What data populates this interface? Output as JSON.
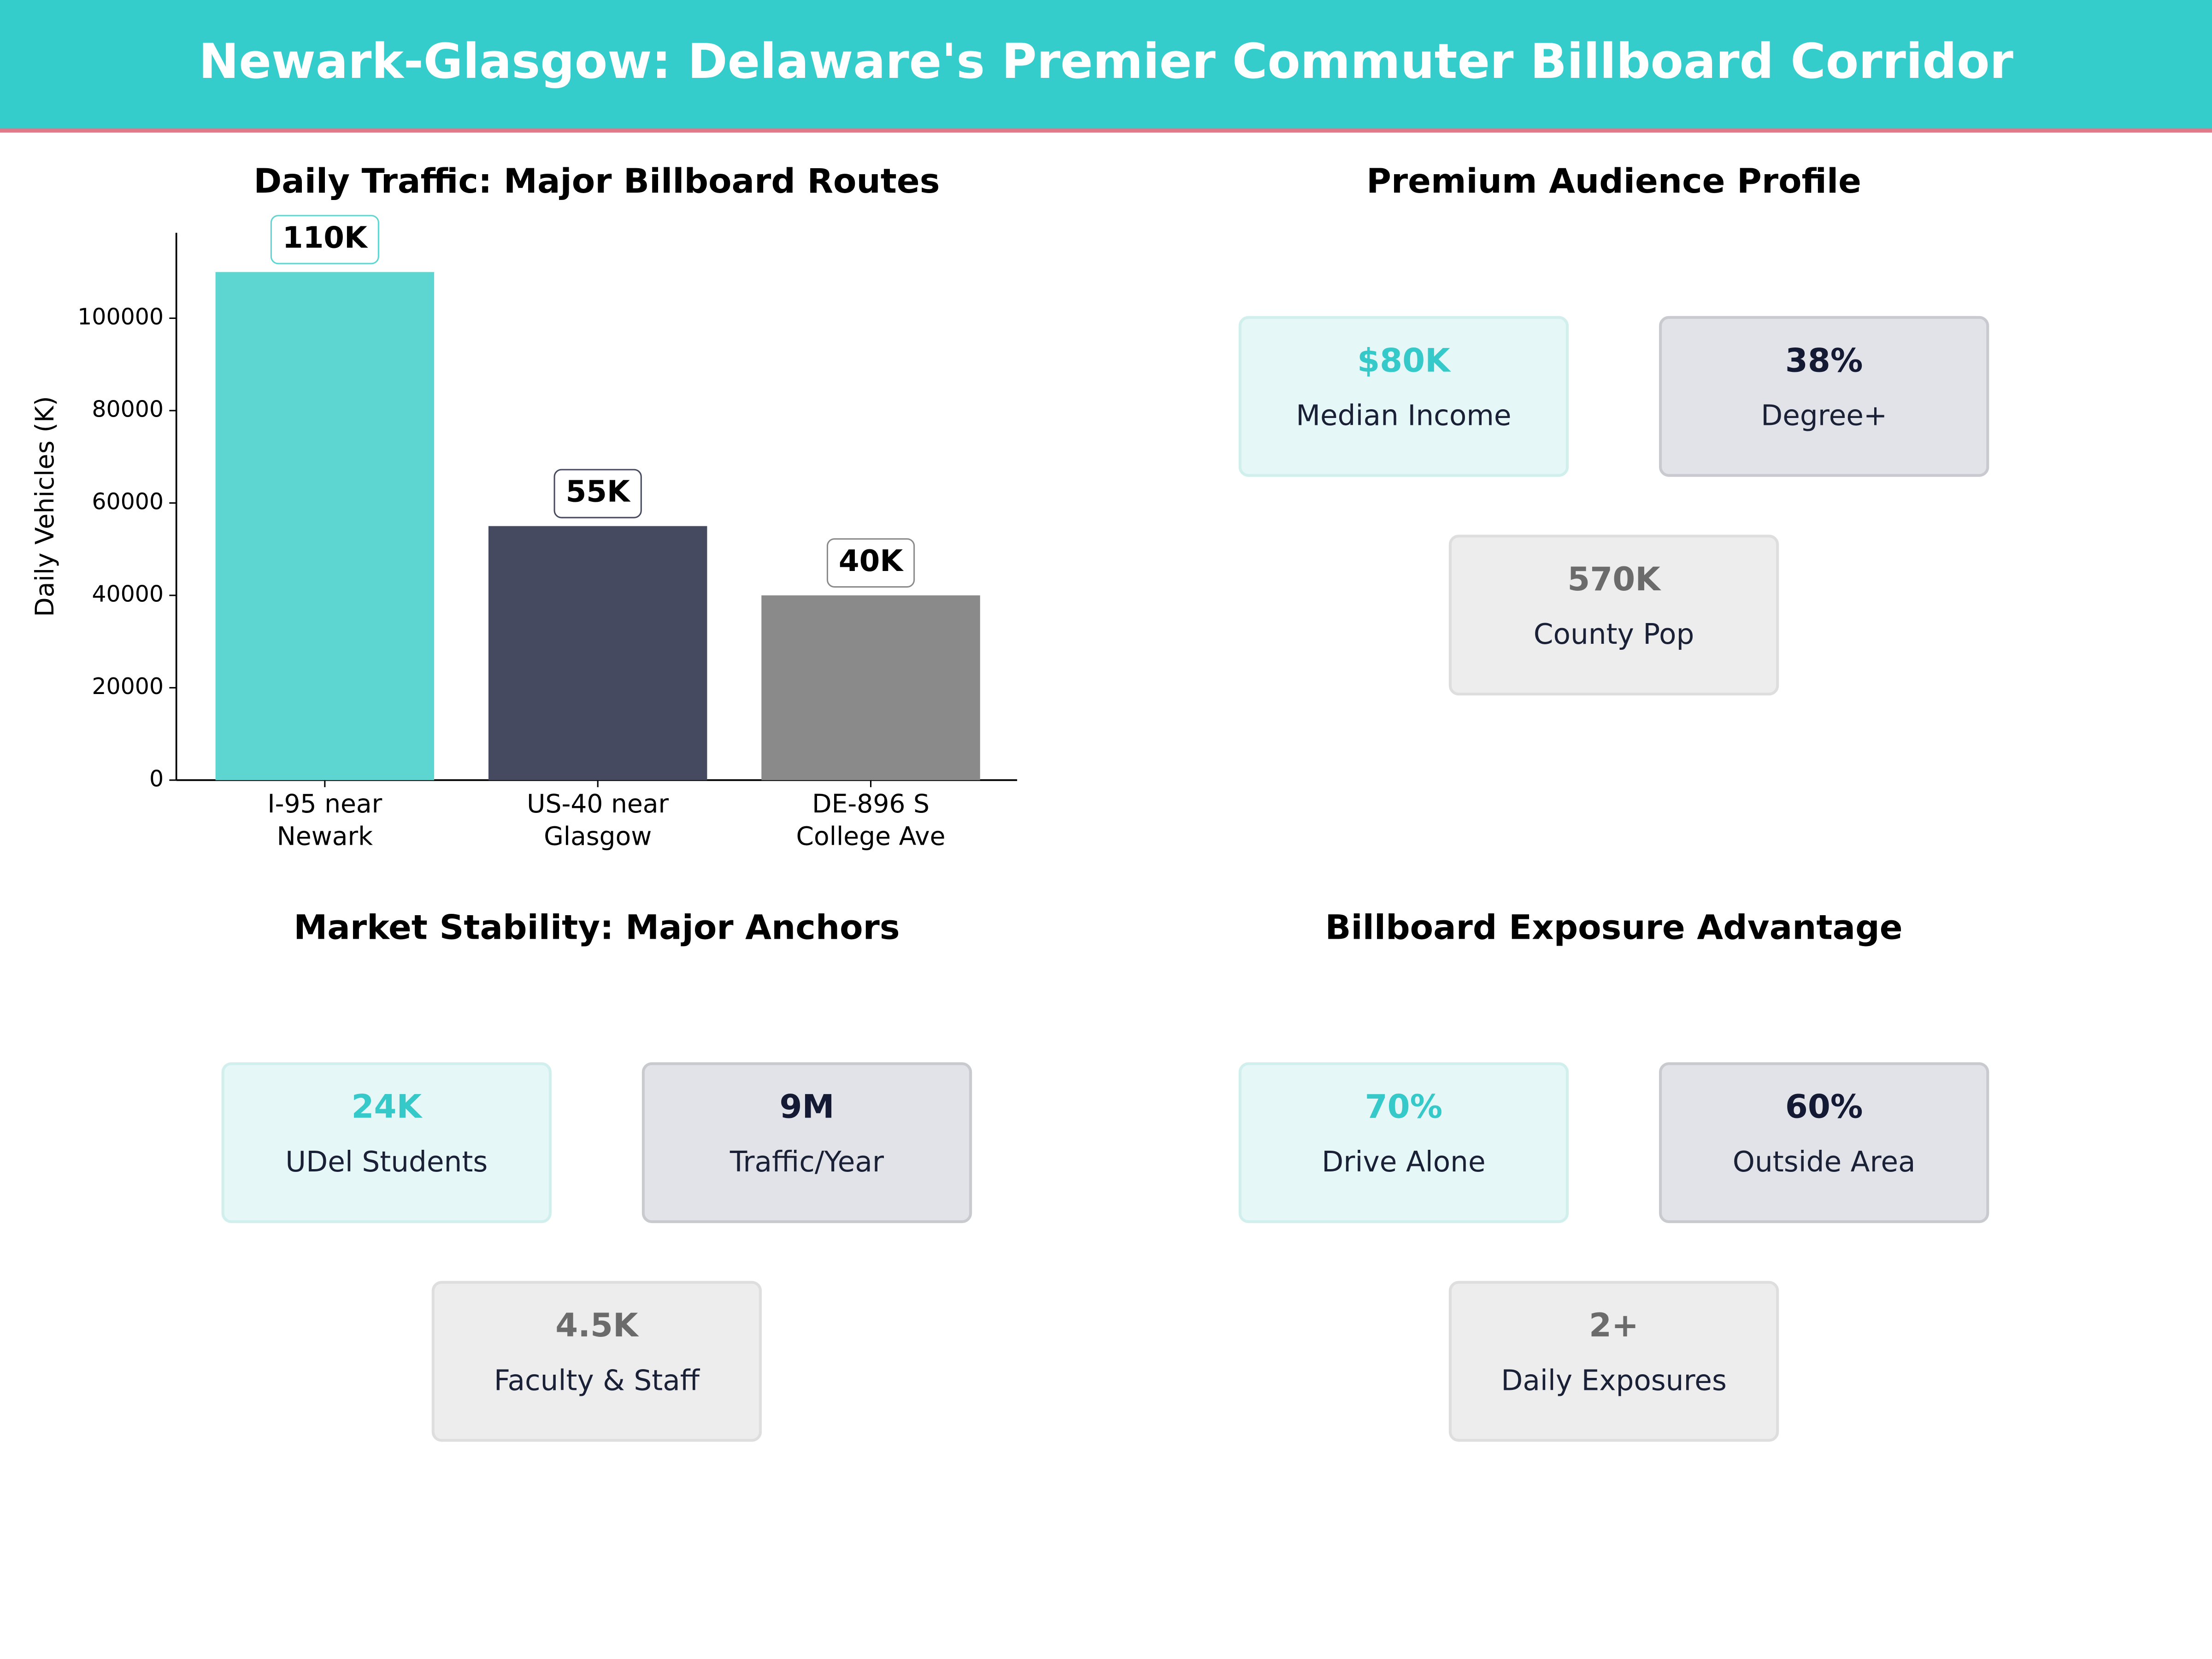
{
  "header": {
    "title": "Newark-Glasgow: Delaware's Premier Commuter Billboard Corridor"
  },
  "chart_data": {
    "type": "bar",
    "title": "Daily Traffic: Major Billboard Routes",
    "y_label": "Daily Vehicles (K)",
    "categories": [
      "I-95 near\nNewark",
      "US-40 near\nGlasgow",
      "DE-896 S\nCollege Ave"
    ],
    "values": [
      110000,
      55000,
      40000
    ],
    "value_labels": [
      "110K",
      "55K",
      "40K"
    ],
    "colors": [
      "#5dd6d2",
      "#464a60",
      "#8a8a8a"
    ],
    "ylim": [
      0,
      118500
    ],
    "yticks": [
      0,
      20000,
      40000,
      60000,
      80000,
      100000
    ],
    "grid": false
  },
  "panels": [
    {
      "title": "Premium Audience Profile",
      "cards": [
        {
          "value": "$80K",
          "label": "Median Income"
        },
        {
          "value": "38%",
          "label": "Degree+"
        },
        {
          "value": "570K",
          "label": "County Pop"
        }
      ]
    },
    {
      "title": "Market Stability: Major Anchors",
      "cards": [
        {
          "value": "24K",
          "label": "UDel Students"
        },
        {
          "value": "9M",
          "label": "Traffic/Year"
        },
        {
          "value": "4.5K",
          "label": "Faculty & Staff"
        }
      ]
    },
    {
      "title": "Billboard Exposure Advantage",
      "cards": [
        {
          "value": "70%",
          "label": "Drive Alone"
        },
        {
          "value": "60%",
          "label": "Outside Area"
        },
        {
          "value": "2+",
          "label": "Daily Exposures"
        }
      ]
    }
  ]
}
